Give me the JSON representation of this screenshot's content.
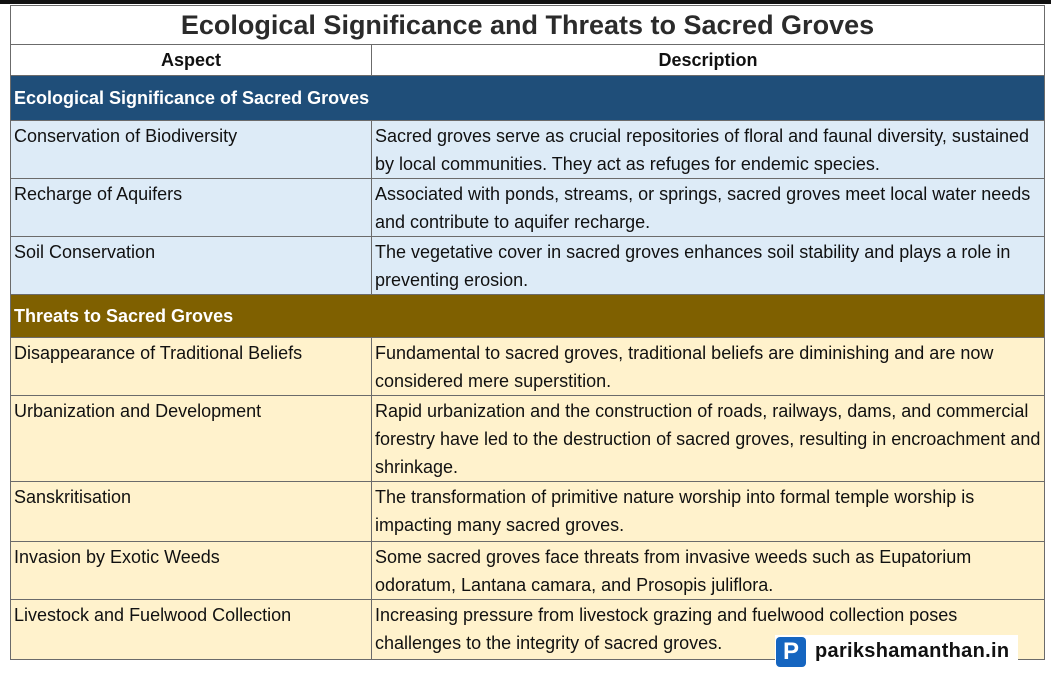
{
  "title": "Ecological Significance and Threats to Sacred Groves",
  "columns": {
    "aspect": "Aspect",
    "description": "Description"
  },
  "sections": [
    {
      "heading": "Ecological Significance of Sacred Groves",
      "color": "#1f4e79",
      "rows": [
        {
          "aspect": "Conservation of Biodiversity",
          "description": "Sacred groves serve as crucial repositories of floral and faunal diversity, sustained by local communities. They act as refuges for endemic species."
        },
        {
          "aspect": "Recharge of Aquifers",
          "description": "Associated with ponds, streams, or springs, sacred groves meet local water needs and contribute to aquifer recharge."
        },
        {
          "aspect": "Soil Conservation",
          "description": "The vegetative cover in sacred groves enhances soil stability and plays a role in preventing erosion."
        }
      ]
    },
    {
      "heading": "Threats to Sacred Groves",
      "color": "#7f6000",
      "rows": [
        {
          "aspect": "Disappearance of Traditional Beliefs",
          "description": "Fundamental to sacred groves, traditional beliefs are diminishing and are now considered mere superstition."
        },
        {
          "aspect": "Urbanization and Development",
          "description": "Rapid urbanization and the construction of roads, railways, dams, and commercial forestry have led to the destruction of sacred groves, resulting in encroachment and shrinkage."
        },
        {
          "aspect": "Sanskritisation",
          "description": "The transformation of primitive nature worship into formal temple worship is impacting many sacred groves."
        },
        {
          "aspect": "Invasion by Exotic Weeds",
          "description": "Some sacred groves face threats from invasive weeds such as Eupatorium odoratum, Lantana camara, and Prosopis juliflora."
        },
        {
          "aspect": "Livestock and Fuelwood Collection",
          "description": "Increasing pressure from livestock grazing and fuelwood collection poses challenges to the integrity of sacred groves."
        }
      ]
    }
  ],
  "logo": {
    "mark": "P",
    "text": "parikshamanthan.in",
    "icon": "p-logo-icon"
  }
}
